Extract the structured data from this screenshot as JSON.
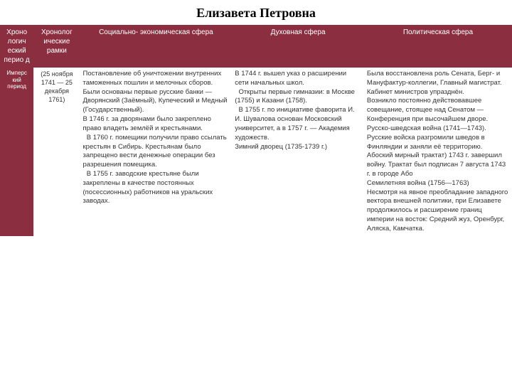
{
  "title": "Елизавета Петровна",
  "headers": {
    "c1": "Хроно логич еский перио д",
    "c2": "Хронолог ические рамки",
    "c3": "Социально- экономическая сфера",
    "c4": "Духовная сфера",
    "c5": "Политическая сфера"
  },
  "row": {
    "period": "Имперс кий период",
    "dates": "(25 ноября 1741 — 25 декабря 1761)",
    "socio": "Постановление об уничтожении внутренних таможенных пошлин и мелочных сборов.\nБыли основаны первые русские банки — Дворянский (Заёмный), Купеческий и Медный (Государственный).\nВ 1746 г. за дворянами было закреплено право владеть землёй и крестьянами.\n  В 1760 г. помещики получили право ссылать крестьян в Сибирь. Крестьянам было запрещено вести денежные операции без разрешения помещика.\n  В 1755 г. заводские крестьяне были закреплены в качестве постоянных (посессионных) работников на уральских заводах.",
    "spirit": "В 1744 г. вышел указ о расширении сети начальных школ.\n  Открыты первые гимназии: в Москве (1755) и Казани (1758).\n  В 1755 г. по инициативе фаворита И. И. Шувалова основан Московский университет, а в 1757 г. — Академия художеств.\nЗимний дворец (1735-1739 г.)",
    "polit": "Была восстановлена роль Сената, Берг- и Мануфактур-коллегии, Главный магистрат. Кабинет министров упразднён.\nВозникло постоянно действовавшее совещание, стоящее над Сенатом — Конференция при высочайшем дворе.\nРусско-шведская война (1741—1743).\nРусские войска разгромили шведов в Финляндии и заняли её территорию. Абоский мирный трактат) 1743 г. завершил войну. Трактат был подписан 7 августа 1743 г. в городе Або\nСемилетняя война (1756—1763)\nНесмотря на явное преобладание западного вектора внешней политики, при Елизавете продолжилось и расширение границ империи на восток: Средний жуз, Оренбург, Аляска, Камчатка."
  }
}
